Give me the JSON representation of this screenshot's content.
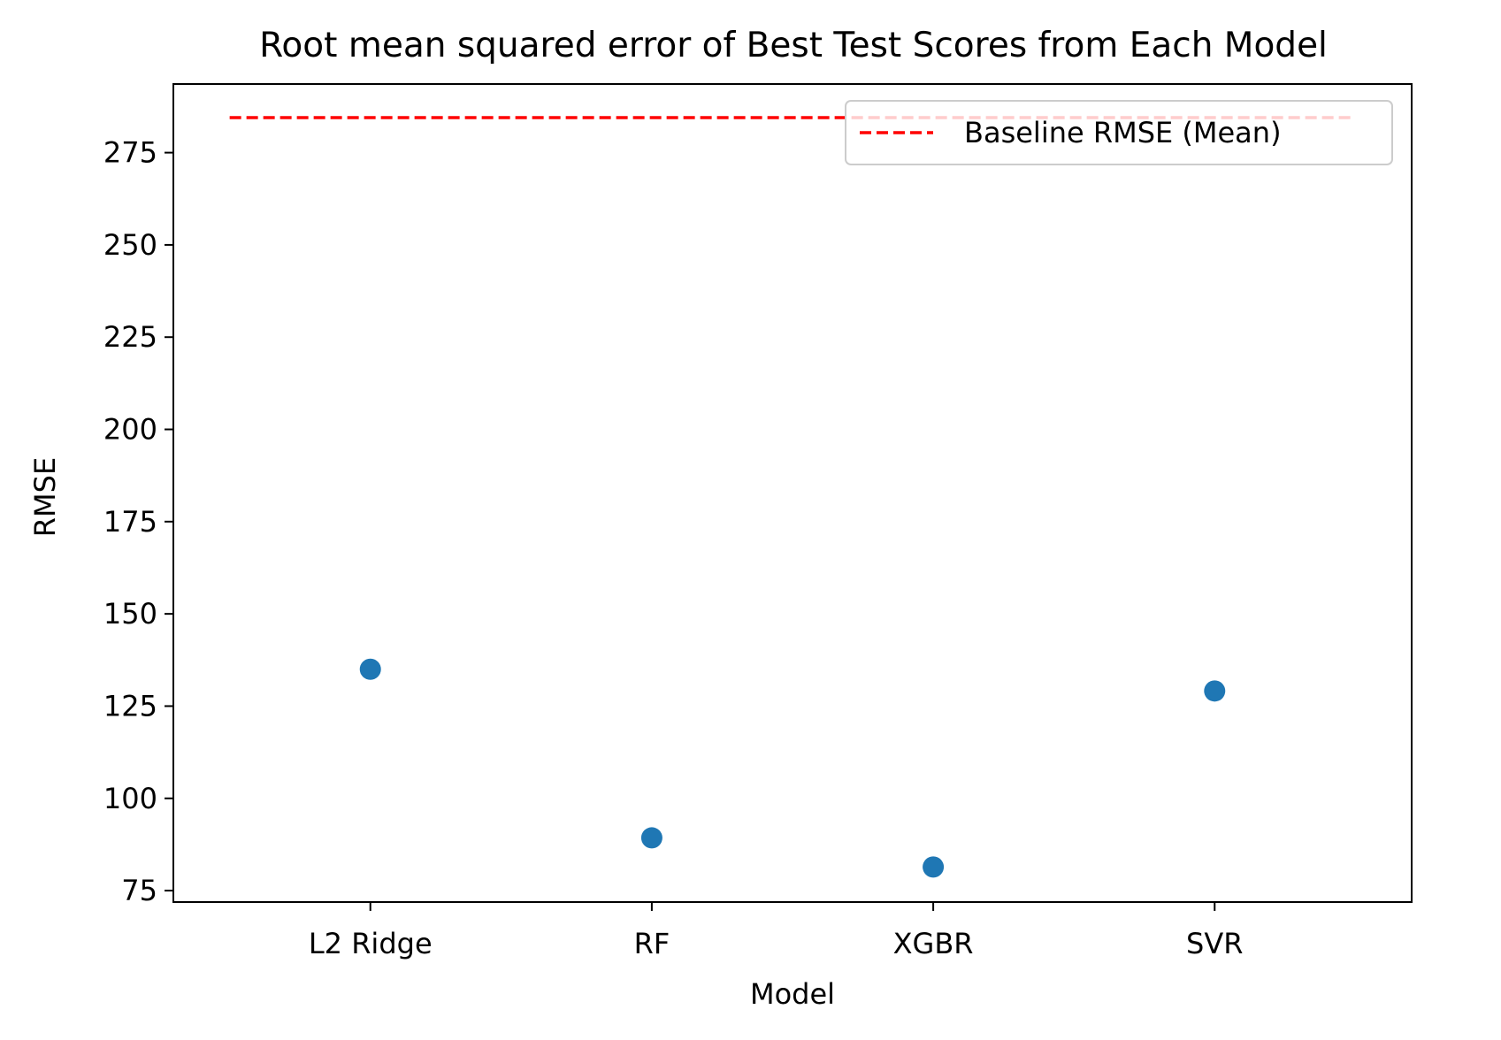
{
  "chart_data": {
    "type": "scatter",
    "title": "Root mean squared error of Best Test Scores from Each Model",
    "xlabel": "Model",
    "ylabel": "RMSE",
    "categories": [
      "L2 Ridge",
      "RF",
      "XGBR",
      "SVR"
    ],
    "series": [
      {
        "values": [
          135.0,
          89.3,
          81.4,
          129.1
        ],
        "color": "#1f77b4"
      }
    ],
    "baseline": {
      "name": "Baseline RMSE (Mean)",
      "value": 284.5,
      "color": "#ff0000",
      "style": "dashed"
    },
    "ylim": [
      71.9,
      293.6
    ],
    "yticks": [
      75,
      100,
      125,
      150,
      175,
      200,
      225,
      250,
      275
    ],
    "grid": false,
    "legend": {
      "position": "top-right"
    }
  }
}
